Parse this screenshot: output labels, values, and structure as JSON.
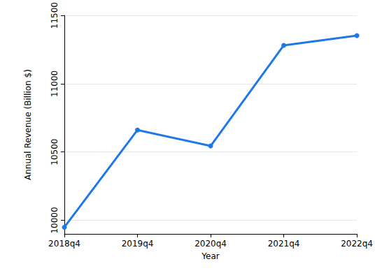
{
  "chart_data": {
    "type": "line",
    "x_label": "Year",
    "y_label": "Annual Revenue (Billion $)",
    "categories": [
      "2018q4",
      "2019q4",
      "2020q4",
      "2021q4",
      "2022q4"
    ],
    "values": [
      9949,
      10661,
      10544,
      11281,
      11352
    ],
    "color": "#1f78e6",
    "marker": "circle",
    "ylim": [
      9900,
      11500
    ],
    "yticks": [
      10000,
      10500,
      11000,
      11500
    ],
    "grid": true
  }
}
